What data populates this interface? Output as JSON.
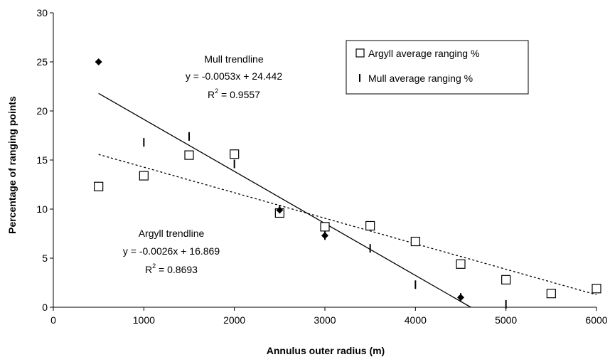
{
  "chart_data": {
    "type": "scatter",
    "title": "",
    "xlabel": "Annulus outer radius (m)",
    "ylabel": "Percentage of ranging points",
    "xlim": [
      0,
      6000
    ],
    "ylim": [
      0,
      30
    ],
    "xticks": [
      "0",
      "1000",
      "2000",
      "3000",
      "4000",
      "5000",
      "6000"
    ],
    "yticks": [
      "0",
      "5",
      "10",
      "15",
      "20",
      "25",
      "30"
    ],
    "grid": false,
    "legend_position": "top-right",
    "series": [
      {
        "name": "Argyll average ranging %",
        "marker": "hollow-square",
        "x": [
          500,
          1000,
          1500,
          2000,
          2500,
          3000,
          3500,
          4000,
          4500,
          5000,
          5500,
          6000
        ],
        "y": [
          12.3,
          13.4,
          15.5,
          15.6,
          9.6,
          8.2,
          8.3,
          6.7,
          4.4,
          2.8,
          1.4,
          1.9
        ]
      },
      {
        "name": "Mull average ranging %",
        "marker": "dash",
        "x": [
          1000,
          1500,
          2000,
          2500,
          3000,
          3500,
          4000,
          4500,
          5000
        ],
        "y": [
          16.8,
          17.4,
          14.6,
          10.0,
          7.3,
          6.0,
          2.3,
          1.0,
          0.3
        ]
      },
      {
        "marker": "filled-diamond",
        "x": [
          500,
          2500,
          3000,
          4500
        ],
        "y": [
          25.0,
          9.9,
          7.3,
          1.0
        ]
      }
    ],
    "trendlines": [
      {
        "for": "Mull",
        "slope": -0.0053,
        "intercept": 24.442,
        "x_from": 500,
        "style": "solid"
      },
      {
        "for": "Argyll",
        "slope": -0.0026,
        "intercept": 16.869,
        "x_from": 500,
        "x_to": 6000,
        "style": "dotted"
      }
    ],
    "annotations": {
      "mull": {
        "title": "Mull trendline",
        "equation": "y = -0.0053x + 24.442",
        "r2_prefix": "R",
        "r2_sup": "2",
        "r2_value": " = 0.9557"
      },
      "argyll": {
        "title": "Argyll trendline",
        "equation": "y = -0.0026x + 16.869",
        "r2_prefix": "R",
        "r2_sup": "2",
        "r2_value": " = 0.8693"
      }
    },
    "colors": {
      "ink": "#000000",
      "background": "#ffffff"
    }
  }
}
